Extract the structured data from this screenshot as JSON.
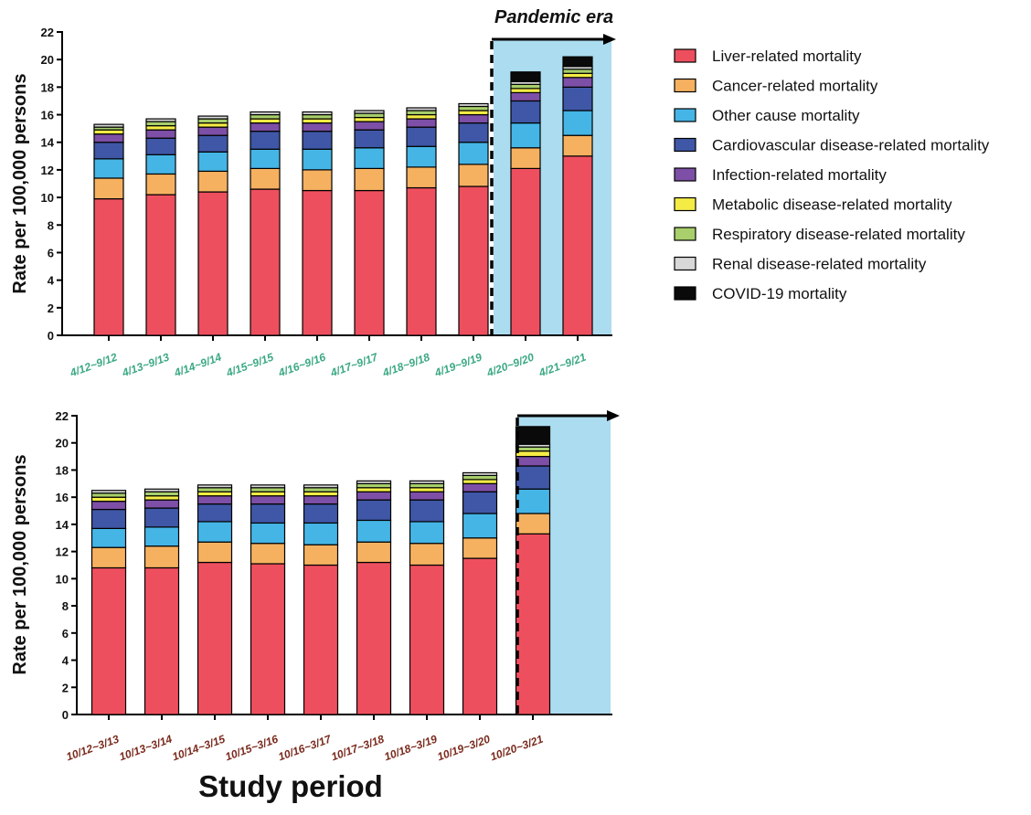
{
  "colors": {
    "Liver-related mortality": "#ee4f5e",
    "Cancer-related mortality": "#f6b160",
    "Other cause mortality": "#45b5e6",
    "Cardiovascular disease-related mortality": "#3f57a6",
    "Infection-related mortality": "#7d4fa6",
    "Metabolic disease-related mortality": "#f4ec45",
    "Respiratory disease-related mortality": "#a8cf6b",
    "Renal disease-related mortality": "#d8d8d8",
    "COVID-19 mortality": "#0a0a0a",
    "pandemic_shade": "#acdcef",
    "top_tick_color": "#3aa882",
    "bottom_tick_color": "#7a2a1d"
  },
  "legend": [
    "Liver-related mortality",
    "Cancer-related mortality",
    "Other cause mortality",
    "Cardiovascular disease-related mortality",
    "Infection-related mortality",
    "Metabolic disease-related mortality",
    "Respiratory disease-related mortality",
    "Renal disease-related mortality",
    "COVID-19 mortality"
  ],
  "annotations": {
    "pandemic_era": "Pandemic era"
  },
  "xlabel": "Study period",
  "chart_data": [
    {
      "type": "bar",
      "stacked": true,
      "ylabel": "Rate per 100,000 persons",
      "ylim": [
        0,
        22
      ],
      "yticks": [
        0,
        2,
        4,
        6,
        8,
        10,
        12,
        14,
        16,
        18,
        20,
        22
      ],
      "categories": [
        "4/12~9/12",
        "4/13~9/13",
        "4/14~9/14",
        "4/15~9/15",
        "4/16~9/16",
        "4/17~9/17",
        "4/18~9/18",
        "4/19~9/19",
        "4/20~9/20",
        "4/21~9/21"
      ],
      "pandemic_start_index": 8,
      "series": [
        {
          "name": "Liver-related mortality",
          "values": [
            9.9,
            10.2,
            10.4,
            10.6,
            10.5,
            10.5,
            10.7,
            10.8,
            12.1,
            13.0
          ]
        },
        {
          "name": "Cancer-related mortality",
          "values": [
            1.5,
            1.5,
            1.5,
            1.5,
            1.5,
            1.6,
            1.5,
            1.6,
            1.5,
            1.5
          ]
        },
        {
          "name": "Other cause mortality",
          "values": [
            1.4,
            1.4,
            1.4,
            1.4,
            1.5,
            1.5,
            1.5,
            1.6,
            1.8,
            1.8
          ]
        },
        {
          "name": "Cardiovascular disease-related mortality",
          "values": [
            1.2,
            1.2,
            1.2,
            1.3,
            1.3,
            1.3,
            1.4,
            1.4,
            1.6,
            1.7
          ]
        },
        {
          "name": "Infection-related mortality",
          "values": [
            0.6,
            0.6,
            0.6,
            0.6,
            0.6,
            0.6,
            0.6,
            0.6,
            0.6,
            0.7
          ]
        },
        {
          "name": "Metabolic disease-related mortality",
          "values": [
            0.3,
            0.3,
            0.3,
            0.3,
            0.3,
            0.3,
            0.3,
            0.3,
            0.3,
            0.3
          ]
        },
        {
          "name": "Respiratory disease-related mortality",
          "values": [
            0.2,
            0.3,
            0.3,
            0.3,
            0.3,
            0.3,
            0.3,
            0.3,
            0.3,
            0.3
          ]
        },
        {
          "name": "Renal disease-related mortality",
          "values": [
            0.2,
            0.2,
            0.2,
            0.2,
            0.2,
            0.2,
            0.2,
            0.2,
            0.2,
            0.2
          ]
        },
        {
          "name": "COVID-19 mortality",
          "values": [
            0,
            0,
            0,
            0,
            0,
            0,
            0,
            0,
            0.7,
            0.7
          ]
        }
      ]
    },
    {
      "type": "bar",
      "stacked": true,
      "ylabel": "Rate per 100,000 persons",
      "ylim": [
        0,
        22
      ],
      "yticks": [
        0,
        2,
        4,
        6,
        8,
        10,
        12,
        14,
        16,
        18,
        20,
        22
      ],
      "categories": [
        "10/12~3/13",
        "10/13~3/14",
        "10/14~3/15",
        "10/15~3/16",
        "10/16~3/17",
        "10/17~3/18",
        "10/18~3/19",
        "10/19~3/20",
        "10/20~3/21"
      ],
      "pandemic_start_index": 8,
      "series": [
        {
          "name": "Liver-related mortality",
          "values": [
            10.8,
            10.8,
            11.2,
            11.1,
            11.0,
            11.2,
            11.0,
            11.5,
            13.3
          ]
        },
        {
          "name": "Cancer-related mortality",
          "values": [
            1.5,
            1.6,
            1.5,
            1.5,
            1.5,
            1.5,
            1.6,
            1.5,
            1.5
          ]
        },
        {
          "name": "Other cause mortality",
          "values": [
            1.4,
            1.4,
            1.5,
            1.5,
            1.6,
            1.6,
            1.6,
            1.8,
            1.8
          ]
        },
        {
          "name": "Cardiovascular disease-related mortality",
          "values": [
            1.4,
            1.4,
            1.3,
            1.4,
            1.4,
            1.5,
            1.6,
            1.6,
            1.7
          ]
        },
        {
          "name": "Infection-related mortality",
          "values": [
            0.6,
            0.6,
            0.6,
            0.6,
            0.6,
            0.6,
            0.6,
            0.6,
            0.7
          ]
        },
        {
          "name": "Metabolic disease-related mortality",
          "values": [
            0.3,
            0.3,
            0.3,
            0.3,
            0.3,
            0.3,
            0.3,
            0.3,
            0.4
          ]
        },
        {
          "name": "Respiratory disease-related mortality",
          "values": [
            0.3,
            0.3,
            0.3,
            0.3,
            0.3,
            0.3,
            0.3,
            0.3,
            0.3
          ]
        },
        {
          "name": "Renal disease-related mortality",
          "values": [
            0.2,
            0.2,
            0.2,
            0.2,
            0.2,
            0.2,
            0.2,
            0.2,
            0.2
          ]
        },
        {
          "name": "COVID-19 mortality",
          "values": [
            0,
            0,
            0,
            0,
            0,
            0,
            0,
            0,
            1.3
          ]
        }
      ]
    }
  ]
}
